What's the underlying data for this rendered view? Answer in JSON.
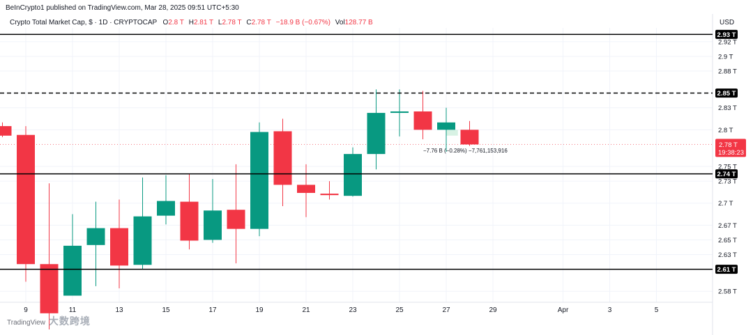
{
  "header": {
    "published": "BeInCrypto1 published on TradingView.com, Mar 28, 2025 09:51 UTC+5:30",
    "symbol": "Crypto Total Market Cap, $ · 1D · CRYPTOCAP",
    "open_label": "O",
    "open": "2.8 T",
    "high_label": "H",
    "high": "2.81 T",
    "low_label": "L",
    "low": "2.78 T",
    "close_label": "C",
    "close": "2.78 T",
    "change": "−18.9 B (−0.67%)",
    "vol_label": "Vol",
    "vol": "128.77 B",
    "currency": "USD"
  },
  "watermark": {
    "logo_text": "TradingView",
    "overlay_text": "大数跨境"
  },
  "colors": {
    "up": "#089981",
    "down": "#f23645",
    "grid": "#f0f3fa",
    "text": "#131722"
  },
  "chart_data": {
    "type": "candlestick",
    "ylabel": "USD",
    "y_unit": "T",
    "ylim": [
      2.565,
      2.955
    ],
    "y_ticks": [
      2.58,
      2.61,
      2.63,
      2.65,
      2.67,
      2.7,
      2.73,
      2.75,
      2.8,
      2.83,
      2.85,
      2.88,
      2.9,
      2.92,
      2.93
    ],
    "y_tick_labels": [
      "2.58 T",
      "2.61 T",
      "2.63 T",
      "2.65 T",
      "2.67 T",
      "2.7 T",
      "2.73 T",
      "2.75 T",
      "2.8 T",
      "2.83 T",
      "2.85 T",
      "2.88 T",
      "2.9 T",
      "2.92 T",
      "2.93 T"
    ],
    "x_ticks": [
      {
        "day": 9,
        "label": "9"
      },
      {
        "day": 11,
        "label": "11"
      },
      {
        "day": 13,
        "label": "13"
      },
      {
        "day": 15,
        "label": "15"
      },
      {
        "day": 17,
        "label": "17"
      },
      {
        "day": 19,
        "label": "19"
      },
      {
        "day": 21,
        "label": "21"
      },
      {
        "day": 23,
        "label": "23"
      },
      {
        "day": 25,
        "label": "25"
      },
      {
        "day": 27,
        "label": "27"
      },
      {
        "day": 29,
        "label": "29"
      },
      {
        "day": 32,
        "label": "Apr"
      },
      {
        "day": 34,
        "label": "3"
      },
      {
        "day": 36,
        "label": "5"
      }
    ],
    "candles": [
      {
        "day": 8,
        "open": 2.805,
        "high": 2.81,
        "low": 2.79,
        "close": 2.792
      },
      {
        "day": 9,
        "open": 2.793,
        "high": 2.805,
        "low": 2.593,
        "close": 2.617
      },
      {
        "day": 10,
        "open": 2.617,
        "high": 2.727,
        "low": 2.528,
        "close": 2.55
      },
      {
        "day": 11,
        "open": 2.574,
        "high": 2.685,
        "low": 2.575,
        "close": 2.642
      },
      {
        "day": 12,
        "open": 2.643,
        "high": 2.702,
        "low": 2.587,
        "close": 2.666
      },
      {
        "day": 13,
        "open": 2.666,
        "high": 2.705,
        "low": 2.584,
        "close": 2.615
      },
      {
        "day": 14,
        "open": 2.616,
        "high": 2.735,
        "low": 2.61,
        "close": 2.682
      },
      {
        "day": 15,
        "open": 2.683,
        "high": 2.738,
        "low": 2.671,
        "close": 2.703
      },
      {
        "day": 16,
        "open": 2.702,
        "high": 2.74,
        "low": 2.637,
        "close": 2.649
      },
      {
        "day": 17,
        "open": 2.65,
        "high": 2.733,
        "low": 2.646,
        "close": 2.69
      },
      {
        "day": 18,
        "open": 2.691,
        "high": 2.753,
        "low": 2.618,
        "close": 2.665
      },
      {
        "day": 19,
        "open": 2.665,
        "high": 2.81,
        "low": 2.655,
        "close": 2.797
      },
      {
        "day": 20,
        "open": 2.798,
        "high": 2.815,
        "low": 2.696,
        "close": 2.725
      },
      {
        "day": 21,
        "open": 2.725,
        "high": 2.753,
        "low": 2.681,
        "close": 2.714
      },
      {
        "day": 22,
        "open": 2.713,
        "high": 2.73,
        "low": 2.705,
        "close": 2.711
      },
      {
        "day": 23,
        "open": 2.71,
        "high": 2.776,
        "low": 2.709,
        "close": 2.767
      },
      {
        "day": 24,
        "open": 2.767,
        "high": 2.855,
        "low": 2.746,
        "close": 2.823
      },
      {
        "day": 25,
        "open": 2.823,
        "high": 2.855,
        "low": 2.791,
        "close": 2.825
      },
      {
        "day": 26,
        "open": 2.825,
        "high": 2.853,
        "low": 2.787,
        "close": 2.8
      },
      {
        "day": 27,
        "open": 2.8,
        "high": 2.83,
        "low": 2.77,
        "close": 2.81
      },
      {
        "day": 28,
        "open": 2.8,
        "high": 2.812,
        "low": 2.778,
        "close": 2.78
      }
    ],
    "horizontal_lines": [
      {
        "value": 2.93,
        "style": "solid",
        "label": "2.93 T"
      },
      {
        "value": 2.85,
        "style": "dashed",
        "label": "2.85 T"
      },
      {
        "value": 2.74,
        "style": "solid",
        "label": "2.74 T"
      },
      {
        "value": 2.61,
        "style": "solid",
        "label": "2.61 T"
      }
    ],
    "last_price": {
      "value": 2.78,
      "label": "2.78 T",
      "countdown": "19:38:23"
    },
    "annotation": {
      "text": "−7.76 B (−0.28%) −7,761,153,916",
      "value": 2.772,
      "day": 27
    },
    "selection": {
      "day_from": 27,
      "day_to": 27.5,
      "value_from": 2.792,
      "value_to": 2.8
    }
  }
}
